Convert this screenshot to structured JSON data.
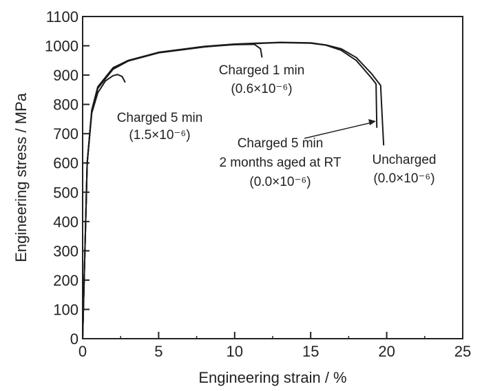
{
  "chart_data": {
    "type": "line",
    "title": "",
    "xlabel": "Engineering strain / %",
    "ylabel": "Engineering stress / MPa",
    "xlim": [
      0,
      25
    ],
    "ylim": [
      0,
      1100
    ],
    "xticks": [
      0,
      5,
      10,
      15,
      20,
      25
    ],
    "yticks": [
      0,
      100,
      200,
      300,
      400,
      500,
      600,
      700,
      800,
      900,
      1000,
      1100
    ],
    "grid": false,
    "series": [
      {
        "name": "Uncharged (0.0×10⁻⁶)",
        "x": [
          0,
          0.3,
          0.6,
          1,
          2,
          3,
          5,
          8,
          10,
          13,
          15,
          16,
          17,
          18,
          19,
          19.6,
          19.7,
          19.8
        ],
        "y": [
          0,
          600,
          780,
          860,
          925,
          950,
          978,
          998,
          1006,
          1012,
          1010,
          1003,
          990,
          960,
          905,
          865,
          760,
          660
        ]
      },
      {
        "name": "Charged 5 min, 2 months aged at RT (0.0×10⁻⁶)",
        "x": [
          0,
          0.3,
          0.6,
          1,
          2,
          3,
          5,
          8,
          10,
          13,
          15,
          16,
          17,
          18,
          19,
          19.3,
          19.35
        ],
        "y": [
          0,
          600,
          775,
          855,
          920,
          948,
          976,
          996,
          1005,
          1011,
          1009,
          1002,
          985,
          950,
          890,
          870,
          720
        ]
      },
      {
        "name": "Charged 1 min (0.6×10⁻⁶)",
        "x": [
          0,
          0.3,
          0.6,
          1,
          2,
          3,
          5,
          8,
          10,
          11.3,
          11.7,
          11.8
        ],
        "y": [
          0,
          600,
          780,
          860,
          924,
          950,
          977,
          997,
          1004,
          1005,
          990,
          960
        ]
      },
      {
        "name": "Charged 5 min (1.5×10⁻⁶)",
        "x": [
          0,
          0.3,
          0.6,
          1,
          1.5,
          2,
          2.3,
          2.6,
          2.8
        ],
        "y": [
          0,
          600,
          770,
          840,
          880,
          898,
          902,
          895,
          875
        ]
      }
    ],
    "annotations": [
      {
        "lines": [
          "Charged 5 min",
          "(1.5×10⁻⁶)"
        ]
      },
      {
        "lines": [
          "Charged 1 min",
          "(0.6×10⁻⁶)"
        ]
      },
      {
        "lines": [
          "Charged 5 min",
          "2 months aged at RT",
          "(0.0×10⁻⁶)"
        ]
      },
      {
        "lines": [
          "Uncharged",
          "(0.0×10⁻⁶)"
        ]
      }
    ]
  }
}
